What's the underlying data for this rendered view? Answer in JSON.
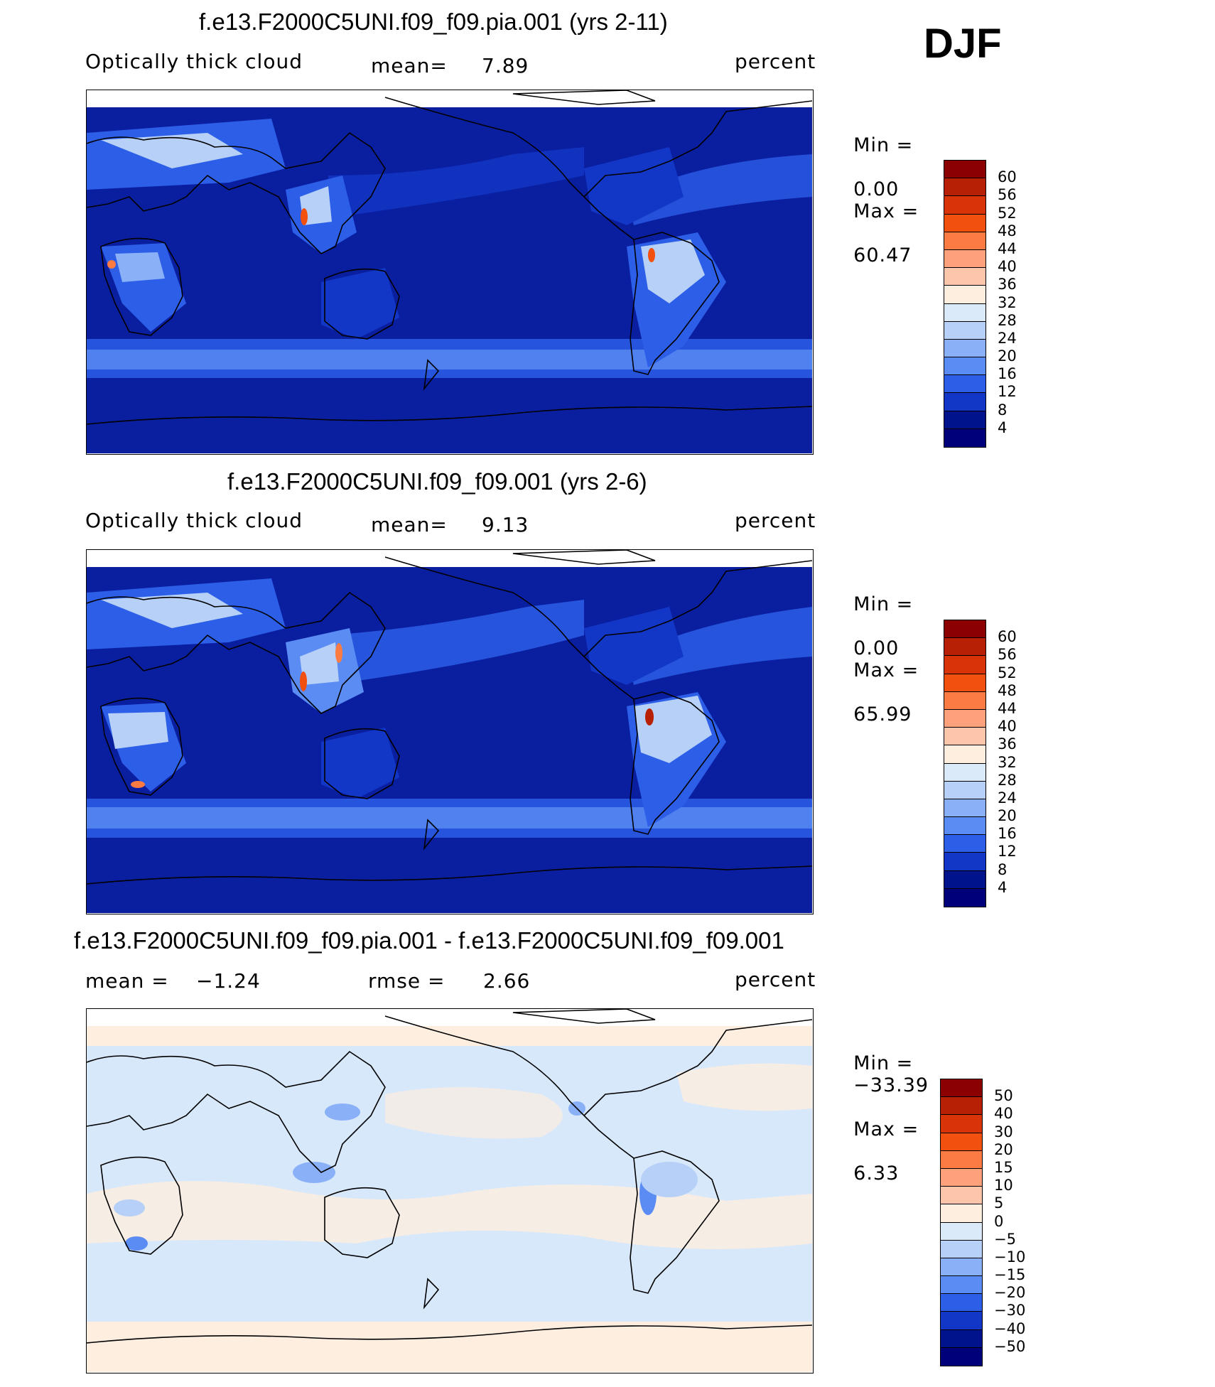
{
  "season": "DJF",
  "units_label": "percent",
  "panels": [
    {
      "title": "f.e13.F2000C5UNI.f09_f09.pia.001 (yrs 2-11)",
      "left_text": "Optically thick cloud",
      "stat1_label": "mean=",
      "stat1_value": "7.89",
      "stat2_label": "",
      "stat2_value": "",
      "units": "percent",
      "min_label": "Min =",
      "min_value": "0.00",
      "max_label": "Max =",
      "max_value": "60.47",
      "colorbar_levels": [
        "60",
        "56",
        "52",
        "48",
        "44",
        "40",
        "36",
        "32",
        "28",
        "24",
        "20",
        "16",
        "12",
        "8",
        "4"
      ]
    },
    {
      "title": "f.e13.F2000C5UNI.f09_f09.001 (yrs 2-6)",
      "left_text": "Optically thick cloud",
      "stat1_label": "mean=",
      "stat1_value": "9.13",
      "stat2_label": "",
      "stat2_value": "",
      "units": "percent",
      "min_label": "Min =",
      "min_value": "0.00",
      "max_label": "Max =",
      "max_value": "65.99",
      "colorbar_levels": [
        "60",
        "56",
        "52",
        "48",
        "44",
        "40",
        "36",
        "32",
        "28",
        "24",
        "20",
        "16",
        "12",
        "8",
        "4"
      ]
    },
    {
      "title": "f.e13.F2000C5UNI.f09_f09.pia.001 - f.e13.F2000C5UNI.f09_f09.001",
      "left_text": "mean =",
      "left_value": "−1.24",
      "stat2_label": "rmse =",
      "stat2_value": "2.66",
      "units": "percent",
      "min_label": "Min =",
      "min_value": "−33.39",
      "max_label": "Max =",
      "max_value": "6.33",
      "colorbar_levels": [
        "50",
        "40",
        "30",
        "20",
        "15",
        "10",
        "5",
        "0",
        "−5",
        "−10",
        "−15",
        "−20",
        "−30",
        "−40",
        "−50"
      ]
    }
  ],
  "colors": {
    "abs_scale": [
      "#8b0000",
      "#b82006",
      "#d93408",
      "#f1500f",
      "#fb7b43",
      "#fda07c",
      "#fdc6aa",
      "#feeee0",
      "#dbeaf9",
      "#b6d0f8",
      "#8ab1f8",
      "#5b8cf3",
      "#2c5ee8",
      "#1237c7",
      "#00138c",
      "#00007a"
    ],
    "diff_scale": [
      "#8b0000",
      "#b82006",
      "#d93408",
      "#f1500f",
      "#fb7b43",
      "#fda07c",
      "#fdc6aa",
      "#feeee0",
      "#dbeaf9",
      "#b6d0f8",
      "#8ab1f8",
      "#5b8cf3",
      "#2c5ee8",
      "#1237c7",
      "#00138c",
      "#00007a"
    ],
    "ocean_abs": "#0a1ea0",
    "ocean_diff": "#d8e8fb"
  }
}
